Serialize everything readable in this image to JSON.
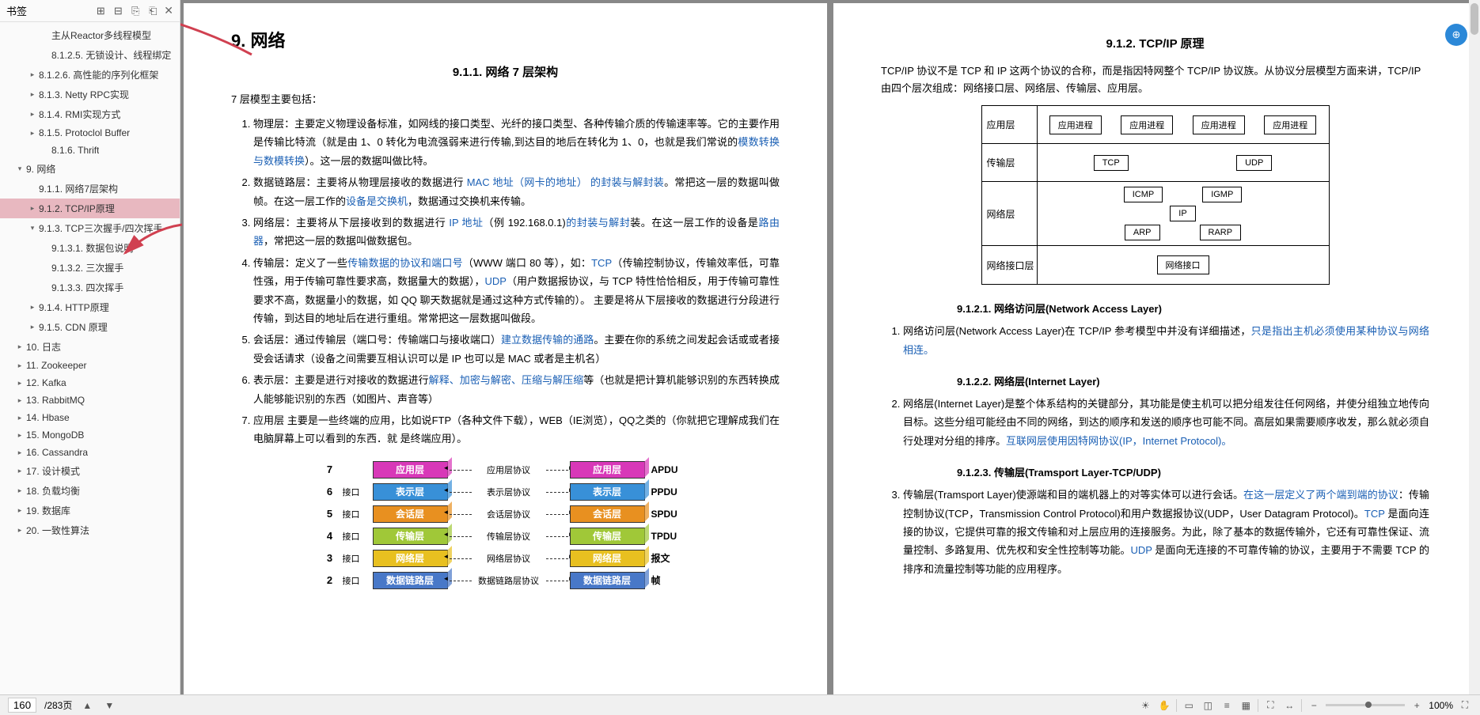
{
  "sidebar": {
    "title": "书签",
    "icons": [
      "expand-all",
      "collapse-all",
      "prev",
      "next"
    ],
    "toc": [
      {
        "label": "主从Reactor多线程模型",
        "indent": 3,
        "caret": ""
      },
      {
        "label": "8.1.2.5. 无锁设计、线程绑定",
        "indent": 3,
        "caret": ""
      },
      {
        "label": "8.1.2.6. 高性能的序列化框架",
        "indent": 2,
        "caret": "▸"
      },
      {
        "label": "8.1.3. Netty RPC实现",
        "indent": 2,
        "caret": "▸"
      },
      {
        "label": "8.1.4. RMI实现方式",
        "indent": 2,
        "caret": "▸"
      },
      {
        "label": "8.1.5. Protoclol Buffer",
        "indent": 2,
        "caret": "▸"
      },
      {
        "label": "8.1.6. Thrift",
        "indent": 3,
        "caret": ""
      },
      {
        "label": "9. 网络",
        "indent": 1,
        "caret": "▾"
      },
      {
        "label": "9.1.1. 网络7层架构",
        "indent": 2,
        "caret": ""
      },
      {
        "label": "9.1.2. TCP/IP原理",
        "indent": 2,
        "caret": "▸",
        "active": true
      },
      {
        "label": "9.1.3. TCP三次握手/四次挥手",
        "indent": 2,
        "caret": "▾"
      },
      {
        "label": "9.1.3.1. 数据包说明",
        "indent": 3,
        "caret": ""
      },
      {
        "label": "9.1.3.2. 三次握手",
        "indent": 3,
        "caret": ""
      },
      {
        "label": "9.1.3.3. 四次挥手",
        "indent": 3,
        "caret": ""
      },
      {
        "label": "9.1.4. HTTP原理",
        "indent": 2,
        "caret": "▸"
      },
      {
        "label": "9.1.5. CDN 原理",
        "indent": 2,
        "caret": "▸"
      },
      {
        "label": "10. 日志",
        "indent": 1,
        "caret": "▸"
      },
      {
        "label": "11. Zookeeper",
        "indent": 1,
        "caret": "▸"
      },
      {
        "label": "12. Kafka",
        "indent": 1,
        "caret": "▸"
      },
      {
        "label": "13. RabbitMQ",
        "indent": 1,
        "caret": "▸"
      },
      {
        "label": "14. Hbase",
        "indent": 1,
        "caret": "▸"
      },
      {
        "label": "15. MongoDB",
        "indent": 1,
        "caret": "▸"
      },
      {
        "label": "16. Cassandra",
        "indent": 1,
        "caret": "▸"
      },
      {
        "label": "17. 设计模式",
        "indent": 1,
        "caret": "▸"
      },
      {
        "label": "18. 负载均衡",
        "indent": 1,
        "caret": "▸"
      },
      {
        "label": "19. 数据库",
        "indent": 1,
        "caret": "▸"
      },
      {
        "label": "20. 一致性算法",
        "indent": 1,
        "caret": "▸"
      }
    ]
  },
  "page1": {
    "h1": "9. 网络",
    "h2": "9.1.1.  网络 7 层架构",
    "intro": "7 层模型主要包括：",
    "items": [
      {
        "pre": "物理层：主要定义物理设备标准，如网线的接口类型、光纤的接口类型、各种传输介质的传输速率等。它的主要作用是传输比特流（就是由 1、0 转化为电流强弱来进行传输,到达目的地后在转化为 1、0，也就是我们常说的",
        "link1": "模数转换与数模转换",
        "post": "）。这一层的数据叫做比特。"
      },
      {
        "pre": "数据链路层：主要将从物理层接收的数据进行 ",
        "link1": "MAC 地址（网卡的地址） 的封装与解封装",
        "post": "。常把这一层的数据叫做帧。在这一层工作的",
        "link2": "设备是交换机",
        "post2": "，数据通过交换机来传输。"
      },
      {
        "pre": "网络层：主要将从下层接收到的数据进行 ",
        "link1": "IP 地址",
        "post": "（例 192.168.0.1)",
        "link2": "的封装与解封",
        "post2": "装。在这一层工作的设备是",
        "link3": "路由器",
        "post3": "，常把这一层的数据叫做数据包。"
      },
      {
        "pre": "传输层：定义了一些",
        "link1": "传输数据的协议和端口号",
        "post": "（WWW 端口 80 等），如：",
        "link2": "TCP",
        "post2": "（传输控制协议，传输效率低，可靠性强，用于传输可靠性要求高，数据量大的数据），",
        "link3": "UDP",
        "post3": "（用户数据报协议，与 TCP 特性恰恰相反，用于传输可靠性要求不高，数据量小的数据，如 QQ 聊天数据就是通过这种方式传输的）。 主要是将从下层接收的数据进行分段进行传输，到达目的地址后在进行重组。常常把这一层数据叫做段。"
      },
      {
        "pre": "会话层：通过传输层（端口号：传输端口与接收端口）",
        "link1": "建立数据传输的通路",
        "post": "。主要在你的系统之间发起会话或或者接受会话请求（设备之间需要互相认识可以是 IP 也可以是 MAC 或者是主机名）"
      },
      {
        "pre": "表示层：主要是进行对接收的数据进行",
        "link1": "解释、加密与解密、压缩与解压缩",
        "post": "等（也就是把计算机能够识别的东西转换成人能够能识别的东西（如图片、声音等）"
      },
      {
        "pre": "应用层 主要是一些终端的应用，比如说FTP（各种文件下载），WEB（IE浏览），QQ之类的（你就把它理解成我们在电脑屏幕上可以看到的东西．就 是终端应用）。",
        "link1": "",
        "post": ""
      }
    ],
    "osi": {
      "rows": [
        {
          "num": "7",
          "color": "#d838b8",
          "label": "应用层",
          "proto": "应用层协议",
          "pdu": "APDU"
        },
        {
          "num": "6",
          "color": "#3890d8",
          "label": "表示层",
          "proto": "表示层协议",
          "pdu": "PPDU"
        },
        {
          "num": "5",
          "color": "#e89020",
          "label": "会话层",
          "proto": "会话层协议",
          "pdu": "SPDU"
        },
        {
          "num": "4",
          "color": "#a0c838",
          "label": "传输层",
          "proto": "传输层协议",
          "pdu": "TPDU"
        },
        {
          "num": "3",
          "color": "#e8c020",
          "label": "网络层",
          "proto": "网络层协议",
          "pdu": "报文"
        },
        {
          "num": "2",
          "color": "#4878c8",
          "label": "数据链路层",
          "proto": "数据链路层协议",
          "pdu": "帧"
        }
      ],
      "iface": "接口"
    }
  },
  "page2": {
    "h2": "9.1.2.  TCP/IP 原理",
    "intro": "TCP/IP 协议不是 TCP 和 IP 这两个协议的合称，而是指因特网整个 TCP/IP 协议族。从协议分层模型方面来讲，TCP/IP 由四个层次组成：网络接口层、网络层、传输层、应用层。",
    "tcpip": {
      "rows": [
        {
          "label": "应用层",
          "boxes": [
            "应用进程",
            "应用进程",
            "应用进程",
            "应用进程"
          ]
        },
        {
          "label": "传输层",
          "boxes": [
            "TCP",
            "UDP"
          ]
        },
        {
          "label": "网络层",
          "boxes_top": [
            "ICMP",
            "IGMP"
          ],
          "boxes_mid": [
            "IP"
          ],
          "boxes_bot": [
            "ARP",
            "RARP"
          ]
        },
        {
          "label": "网络接口层",
          "boxes": [
            "网络接口"
          ]
        }
      ]
    },
    "h3_1": "9.1.2.1.    网络访问层(Network Access Layer)",
    "p1a": "网络访问层(Network Access Layer)在 TCP/IP 参考模型中并没有详细描述，",
    "p1b": "只是指出主机必须使用某种协议与网络相连。",
    "h3_2": "9.1.2.2.    网络层(Internet Layer)",
    "p2a": "网络层(Internet Layer)是整个体系结构的关键部分，其功能是使主机可以把分组发往任何网络，并使分组独立地传向目标。这些分组可能经由不同的网络，到达的顺序和发送的顺序也可能不同。高层如果需要顺序收发，那么就必须自行处理对分组的排序。",
    "p2b": "互联网层使用因特网协议(IP，Internet Protocol)。",
    "h3_3": "9.1.2.3.    传输层(Tramsport Layer-TCP/UDP)",
    "p3a": "传输层(Tramsport Layer)使源端和目的端机器上的对等实体可以进行会话。",
    "p3b": "在这一层定义了两个端到端的协议",
    "p3c": "：传输控制协议(TCP，Transmission Control Protocol)和用户数据报协议(UDP，User Datagram Protocol)。",
    "p3d": "TCP ",
    "p3e": "是面向连接的协议，它提供可靠的报文传输和对上层应用的连接服务。为此，除了基本的数据传输外，它还有可靠性保证、流量控制、多路复用、优先权和安全性控制等功能。",
    "p3f": "UDP ",
    "p3g": "是面向无连接的不可靠传输的协议，主要用于不需要 TCP 的排序和流量控制等功能的应用程序。"
  },
  "statusbar": {
    "page_current": "160",
    "page_total": "/283页",
    "zoom": "100%"
  },
  "annotations": {
    "arrow_color": "#d04050"
  }
}
